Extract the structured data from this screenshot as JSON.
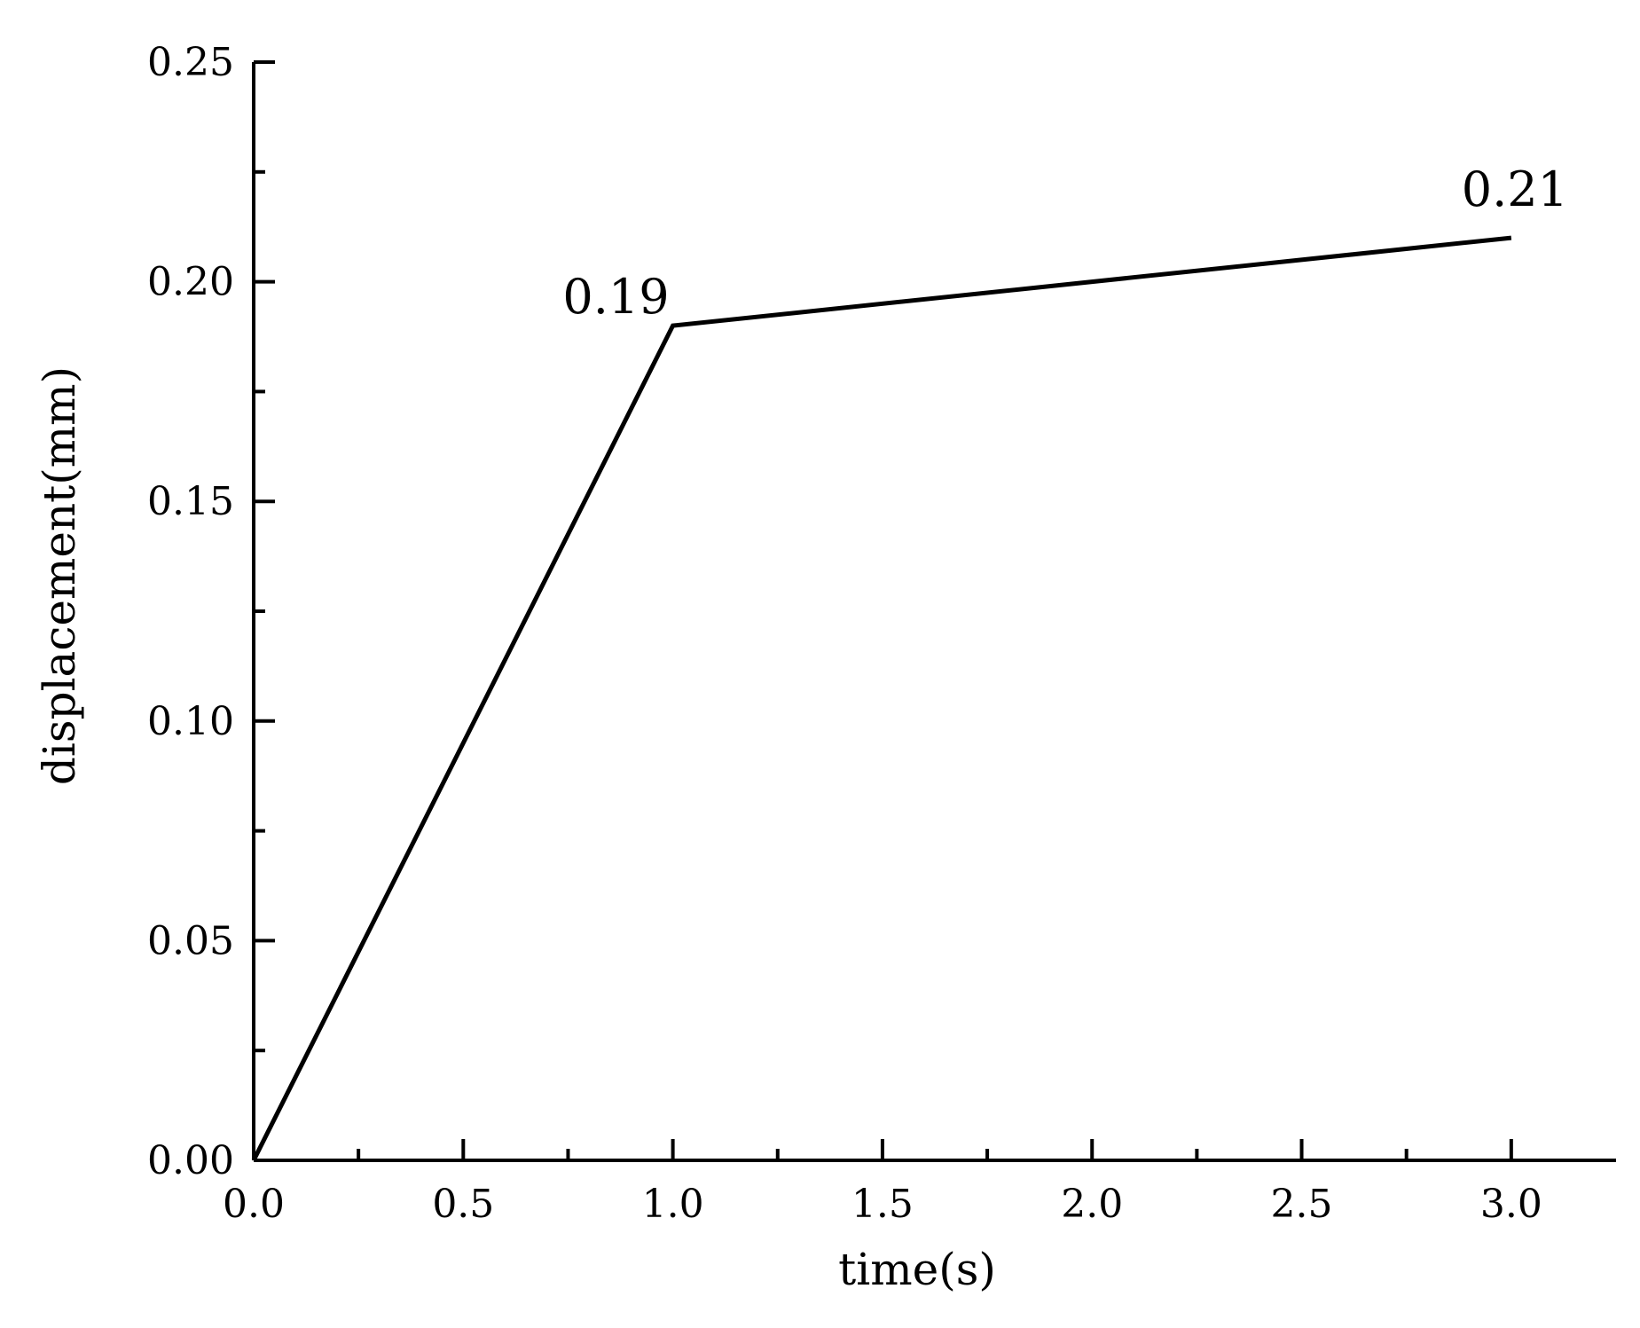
{
  "chart_data": {
    "type": "line",
    "title": "",
    "xlabel": "time(s)",
    "ylabel": "displacement(mm)",
    "xlim": [
      0,
      3.25
    ],
    "ylim": [
      0,
      0.25
    ],
    "x_ticks": [
      "0.0",
      "0.5",
      "1.0",
      "1.5",
      "2.0",
      "2.5",
      "3.0"
    ],
    "y_ticks": [
      "0.00",
      "0.05",
      "0.10",
      "0.15",
      "0.20",
      "0.25"
    ],
    "grid": false,
    "legend": "none",
    "series": [
      {
        "color": "#000000",
        "x": [
          0,
          1,
          3
        ],
        "y": [
          0,
          0.19,
          0.21
        ]
      }
    ],
    "annotations": [
      {
        "text": "0.19",
        "x": 1,
        "y": 0.19
      },
      {
        "text": "0.21",
        "x": 3,
        "y": 0.21
      }
    ]
  }
}
